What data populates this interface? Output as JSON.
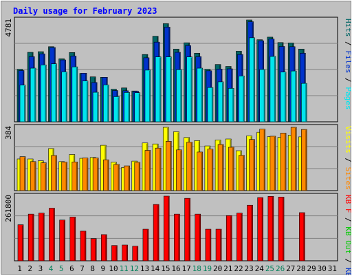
{
  "chart_data": [
    {
      "type": "bar",
      "title": "Daily usage for February 2023",
      "ylabel_max": "4781",
      "x": [
        1,
        2,
        3,
        4,
        5,
        6,
        7,
        8,
        9,
        10,
        11,
        12,
        13,
        14,
        15,
        16,
        17,
        18,
        19,
        20,
        21,
        22,
        23,
        24,
        25,
        26,
        27,
        28,
        29,
        30,
        31
      ],
      "weekend_days": [
        4,
        5,
        11,
        12,
        18,
        19,
        25,
        26
      ],
      "series": [
        {
          "name": "Hits",
          "color": "#006666",
          "values": [
            2420,
            3200,
            3230,
            3460,
            2900,
            3190,
            2230,
            2070,
            2050,
            1500,
            1560,
            1420,
            3100,
            3940,
            4520,
            3350,
            3640,
            3160,
            2420,
            2640,
            2550,
            3250,
            4690,
            3780,
            3900,
            3650,
            3630,
            3350,
            0,
            0,
            0
          ]
        },
        {
          "name": "Files",
          "color": "#0033cc",
          "values": [
            2360,
            3000,
            3130,
            3420,
            2850,
            3030,
            2240,
            1810,
            2050,
            1440,
            1430,
            1400,
            2950,
            3670,
            4360,
            3200,
            3510,
            3000,
            2350,
            2430,
            2440,
            3100,
            4610,
            3730,
            3810,
            3470,
            3460,
            3160,
            0,
            0,
            0
          ]
        },
        {
          "name": "Pages",
          "color": "#00e5ee",
          "values": [
            1690,
            2470,
            2620,
            2670,
            2300,
            2530,
            1880,
            1360,
            1700,
            1160,
            1350,
            1340,
            2380,
            2990,
            2990,
            2400,
            2990,
            2470,
            1580,
            1840,
            1540,
            2110,
            3870,
            2410,
            3010,
            2290,
            2340,
            1770,
            0,
            0,
            0
          ]
        }
      ],
      "legend": [
        "Hits",
        "Files",
        "Pages"
      ]
    },
    {
      "type": "bar",
      "ylabel_max": "384",
      "x": [
        1,
        2,
        3,
        4,
        5,
        6,
        7,
        8,
        9,
        10,
        11,
        12,
        13,
        14,
        15,
        16,
        17,
        18,
        19,
        20,
        21,
        22,
        23,
        24,
        25,
        26,
        27,
        28,
        29,
        30,
        31
      ],
      "series": [
        {
          "name": "Visits",
          "color": "#ffff00",
          "values": [
            192,
            192,
            181,
            255,
            176,
            219,
            196,
            201,
            275,
            172,
            140,
            179,
            289,
            283,
            384,
            357,
            322,
            303,
            271,
            307,
            313,
            242,
            332,
            354,
            327,
            323,
            336,
            326,
            0,
            0,
            0
          ]
        },
        {
          "name": "Sites",
          "color": "#ff8800",
          "values": [
            206,
            176,
            169,
            213,
            173,
            174,
            198,
            198,
            187,
            159,
            150,
            172,
            244,
            258,
            299,
            247,
            294,
            234,
            252,
            280,
            263,
            214,
            310,
            373,
            330,
            349,
            384,
            371,
            0,
            0,
            0
          ]
        }
      ],
      "legend": [
        "Visits",
        "Sites"
      ]
    },
    {
      "type": "bar",
      "ylabel_max": "261800",
      "x": [
        1,
        2,
        3,
        4,
        5,
        6,
        7,
        8,
        9,
        10,
        11,
        12,
        13,
        14,
        15,
        16,
        17,
        18,
        19,
        20,
        21,
        22,
        23,
        24,
        25,
        26,
        27,
        28,
        29,
        30,
        31
      ],
      "series": [
        {
          "name": "KB F",
          "color": "#ff0000",
          "values": [
            146000,
            189000,
            193000,
            213000,
            165000,
            177000,
            120000,
            90000,
            106000,
            62000,
            64000,
            59000,
            128000,
            228000,
            261800,
            189000,
            253000,
            189000,
            128000,
            128000,
            183000,
            193000,
            225000,
            256000,
            261000,
            258000,
            0,
            195000,
            0,
            0,
            0
          ]
        }
      ],
      "legend": [
        "KB F",
        "KB Out",
        "KB In"
      ]
    }
  ],
  "palette": {
    "frame": "#c0c0c0",
    "plot_bg": "#c0c0c0",
    "title_color": "#0000ff",
    "weekday_label_color": "#000000",
    "weekend_label_color": "#00805a",
    "grid_color": "#808080"
  }
}
